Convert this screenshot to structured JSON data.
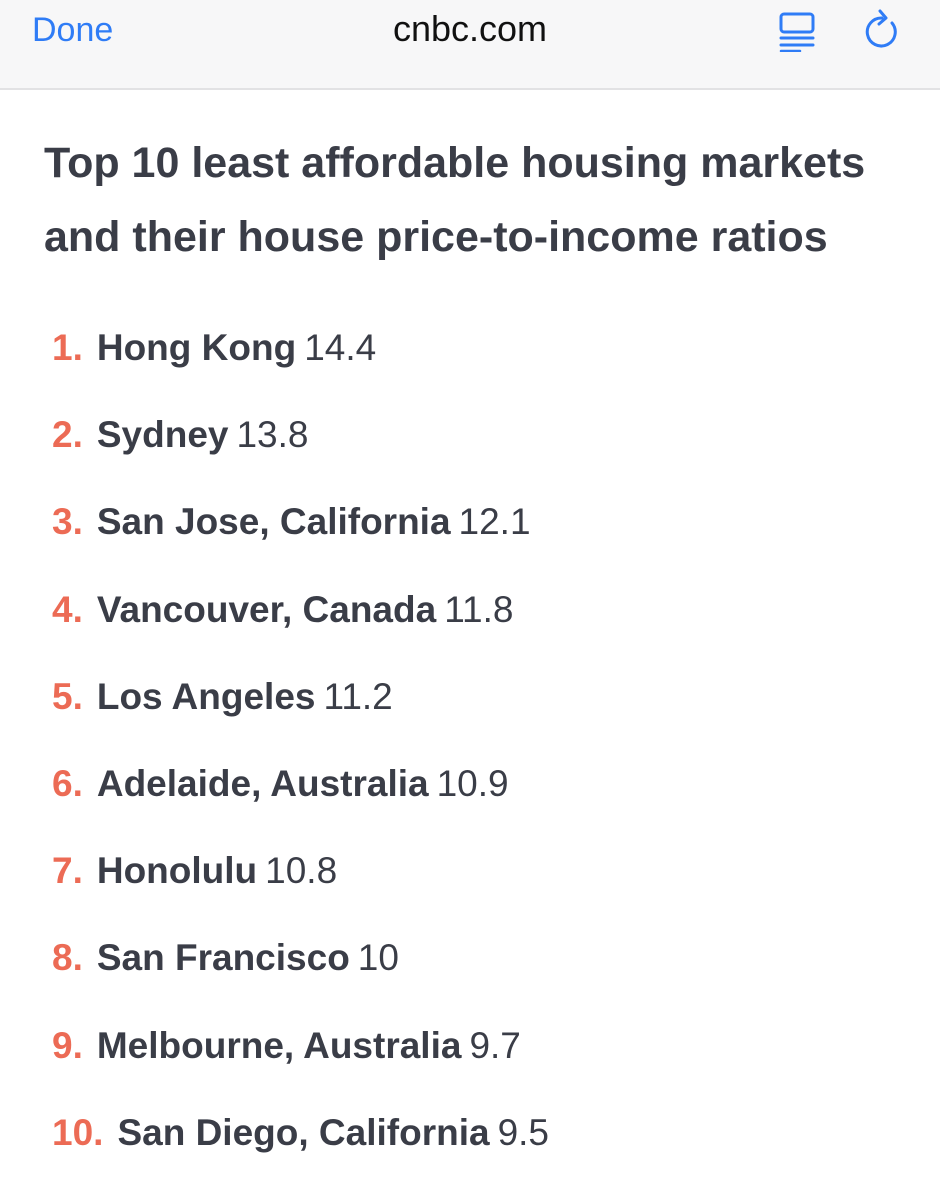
{
  "browser": {
    "done_label": "Done",
    "domain": "cnbc.com",
    "reader_icon": "reader-view-icon",
    "reload_icon": "reload-icon",
    "accent_color": "#2f7cf6"
  },
  "article": {
    "headline_line1": "Top 10 least affordable housing markets",
    "headline_line2": "and their house price-to-income ratios",
    "number_color": "#ec6b55",
    "items": [
      {
        "rank": "1.",
        "city": "Hong Kong",
        "ratio": "14.4"
      },
      {
        "rank": "2.",
        "city": "Sydney",
        "ratio": "13.8"
      },
      {
        "rank": "3.",
        "city": "San Jose, California",
        "ratio": "12.1"
      },
      {
        "rank": "4.",
        "city": "Vancouver, Canada",
        "ratio": "11.8"
      },
      {
        "rank": "5.",
        "city": "Los Angeles",
        "ratio": "11.2"
      },
      {
        "rank": "6.",
        "city": "Adelaide, Australia",
        "ratio": "10.9"
      },
      {
        "rank": "7.",
        "city": "Honolulu",
        "ratio": "10.8"
      },
      {
        "rank": "8.",
        "city": "San Francisco",
        "ratio": "10"
      },
      {
        "rank": "9.",
        "city": "Melbourne, Australia",
        "ratio": "9.7"
      },
      {
        "rank": "10.",
        "city": "San Diego, California",
        "ratio": "9.5"
      }
    ]
  }
}
